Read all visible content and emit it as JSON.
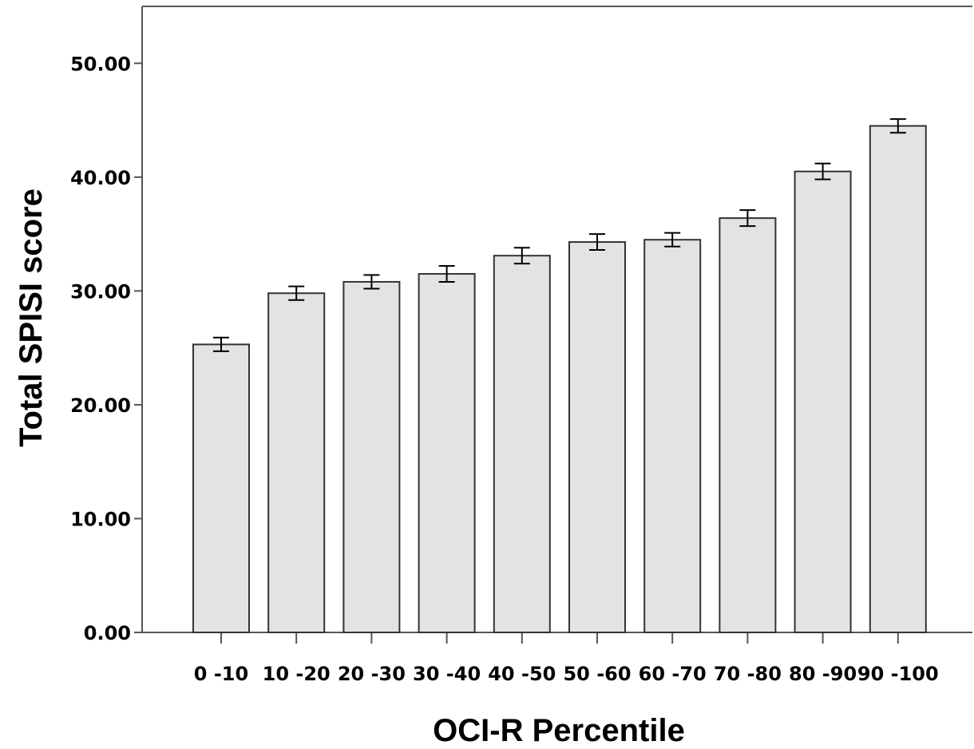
{
  "chart_data": {
    "type": "bar",
    "xlabel": "OCI-R Percentile",
    "ylabel": "Total SPISI score",
    "categories": [
      "0-10",
      "10-20",
      "20-30",
      "30-40",
      "40-50",
      "50-60",
      "60-70",
      "70-80",
      "80-90",
      "90-100"
    ],
    "x_tick_labels": [
      "0 -10",
      "10 -20",
      "20 -30",
      "30 -40",
      "40 -50",
      "50 -60",
      "60 -70",
      "70 -80",
      "80 -90",
      "90 -100"
    ],
    "values": [
      25.3,
      29.8,
      30.8,
      31.5,
      33.1,
      34.3,
      34.5,
      36.4,
      40.5,
      44.5
    ],
    "error_low": [
      24.7,
      29.2,
      30.2,
      30.8,
      32.4,
      33.6,
      33.9,
      35.7,
      39.8,
      43.9
    ],
    "error_high": [
      25.9,
      30.4,
      31.4,
      32.2,
      33.8,
      35.0,
      35.1,
      37.1,
      41.2,
      45.1
    ],
    "ylim": [
      0,
      55
    ],
    "y_ticks": [
      0,
      10,
      20,
      30,
      40,
      50
    ],
    "y_tick_labels": [
      "0.00",
      "10.00",
      "20.00",
      "30.00",
      "40.00",
      "50.00"
    ],
    "grid": false,
    "bar_fill": "#e3e3e3",
    "bar_stroke": "#333333",
    "axis_color": "#555555"
  }
}
